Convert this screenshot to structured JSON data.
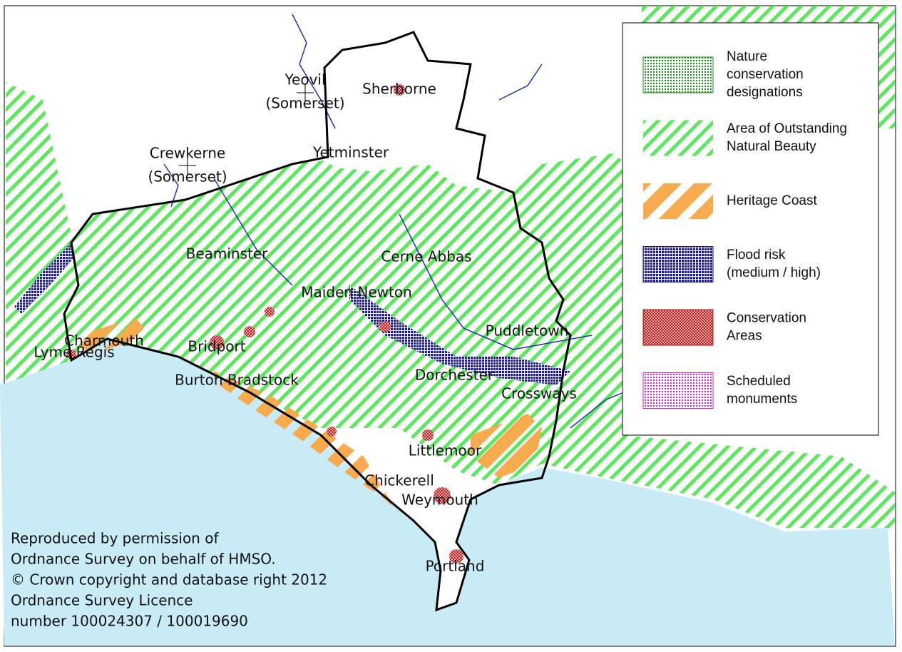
{
  "places": [
    {
      "lines": [
        "Yeovil",
        "(Somerset)"
      ]
    },
    {
      "lines": [
        "Sherborne"
      ]
    },
    {
      "lines": [
        "Crewkerne",
        "(Somerset)"
      ]
    },
    {
      "lines": [
        "Yetminster"
      ]
    },
    {
      "lines": [
        "Beaminster"
      ]
    },
    {
      "lines": [
        "Cerne Abbas"
      ]
    },
    {
      "lines": [
        "Maiden Newton"
      ]
    },
    {
      "lines": [
        "Puddletown"
      ]
    },
    {
      "lines": [
        "Charmouth"
      ]
    },
    {
      "lines": [
        "Lyme Regis"
      ]
    },
    {
      "lines": [
        "Bridport"
      ]
    },
    {
      "lines": [
        "Burton Bradstock"
      ]
    },
    {
      "lines": [
        "Dorchester"
      ]
    },
    {
      "lines": [
        "Crossways"
      ]
    },
    {
      "lines": [
        "Littlemoor"
      ]
    },
    {
      "lines": [
        "Chickerell"
      ]
    },
    {
      "lines": [
        "Weymouth"
      ]
    },
    {
      "lines": [
        "Portland"
      ]
    }
  ],
  "legend": {
    "items": [
      {
        "lines": [
          "Nature",
          "conservation",
          "designations"
        ]
      },
      {
        "lines": [
          "Area of Outstanding",
          "Natural Beauty"
        ]
      },
      {
        "lines": [
          "Heritage Coast"
        ]
      },
      {
        "lines": [
          "Flood risk",
          "(medium / high)"
        ]
      },
      {
        "lines": [
          "Conservation",
          "Areas"
        ]
      },
      {
        "lines": [
          "Scheduled",
          "monuments"
        ]
      }
    ]
  },
  "credit": {
    "lines": [
      "Reproduced by permission of",
      "Ordnance Survey on behalf of HMSO.",
      "© Crown copyright and database right 2012",
      "Ordnance Survey Licence",
      "number 100024307 / 100019690"
    ]
  }
}
